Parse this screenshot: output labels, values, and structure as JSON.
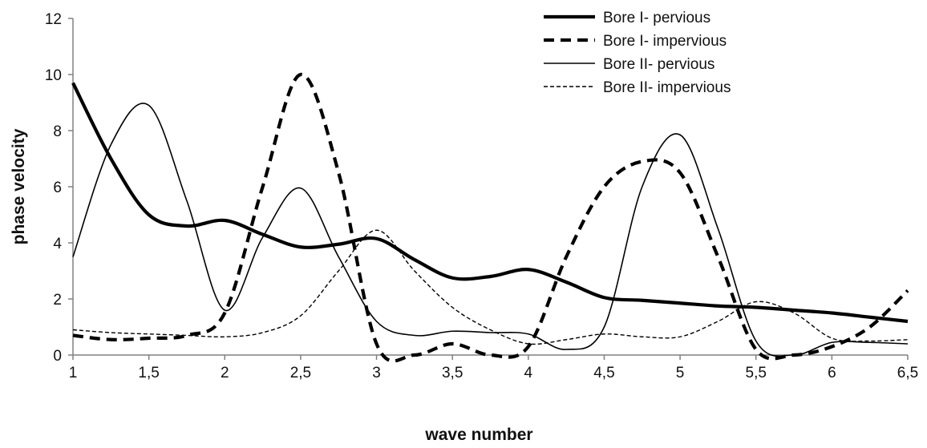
{
  "chart_data": {
    "type": "line",
    "title": "",
    "xlabel": "wave number",
    "ylabel": "phase velocity",
    "xlim": [
      1,
      6.5
    ],
    "ylim": [
      0,
      12
    ],
    "x_ticks": [
      "1",
      "1,5",
      "2",
      "2,5",
      "3",
      "3,5",
      "4",
      "4,5",
      "5",
      "5,5",
      "6",
      "6,5"
    ],
    "y_ticks": [
      "0",
      "2",
      "4",
      "6",
      "8",
      "10",
      "12"
    ],
    "grid": false,
    "legend_position": "top-right",
    "series": [
      {
        "name": "Bore I- pervious",
        "style": "thick-solid",
        "x": [
          1,
          1.25,
          1.5,
          1.75,
          2,
          2.25,
          2.5,
          2.75,
          3,
          3.25,
          3.5,
          3.75,
          4,
          4.25,
          4.5,
          4.75,
          5,
          5.25,
          5.5,
          5.75,
          6,
          6.25,
          6.5
        ],
        "y": [
          9.7,
          7.0,
          5.0,
          4.6,
          4.8,
          4.3,
          3.85,
          3.95,
          4.15,
          3.4,
          2.75,
          2.8,
          3.05,
          2.6,
          2.05,
          1.95,
          1.85,
          1.75,
          1.7,
          1.6,
          1.5,
          1.35,
          1.2
        ]
      },
      {
        "name": "Bore I- impervious",
        "style": "thick-dashed",
        "x": [
          1,
          1.25,
          1.5,
          1.75,
          2,
          2.25,
          2.5,
          2.75,
          3,
          3.25,
          3.5,
          3.75,
          4,
          4.25,
          4.5,
          4.75,
          5,
          5.25,
          5.5,
          5.75,
          6,
          6.25,
          6.5
        ],
        "y": [
          0.7,
          0.55,
          0.6,
          0.7,
          1.5,
          6.0,
          10.0,
          6.5,
          0.4,
          0.0,
          0.4,
          0.0,
          0.3,
          3.5,
          6.0,
          6.9,
          6.5,
          3.5,
          0.2,
          0.0,
          0.3,
          1.0,
          2.3
        ]
      },
      {
        "name": "Bore II- pervious",
        "style": "thin-solid",
        "x": [
          1,
          1.25,
          1.5,
          1.75,
          2,
          2.25,
          2.5,
          2.75,
          3,
          3.25,
          3.5,
          3.75,
          4,
          4.25,
          4.5,
          4.75,
          5,
          5.25,
          5.5,
          5.75,
          6,
          6.25,
          6.5
        ],
        "y": [
          3.5,
          7.5,
          8.9,
          5.5,
          1.6,
          4.2,
          5.95,
          3.5,
          1.2,
          0.7,
          0.85,
          0.8,
          0.75,
          0.2,
          1.0,
          6.0,
          7.85,
          4.5,
          0.5,
          0.0,
          0.45,
          0.45,
          0.4
        ]
      },
      {
        "name": "Bore II- impervious",
        "style": "thin-dashed",
        "x": [
          1,
          1.25,
          1.5,
          1.75,
          2,
          2.25,
          2.5,
          2.75,
          3,
          3.25,
          3.5,
          3.75,
          4,
          4.25,
          4.5,
          4.75,
          5,
          5.25,
          5.5,
          5.75,
          6,
          6.25,
          6.5
        ],
        "y": [
          0.9,
          0.8,
          0.75,
          0.7,
          0.65,
          0.8,
          1.4,
          3.0,
          4.45,
          3.0,
          1.7,
          0.9,
          0.4,
          0.55,
          0.75,
          0.65,
          0.65,
          1.2,
          1.9,
          1.5,
          0.6,
          0.5,
          0.55
        ]
      }
    ]
  }
}
